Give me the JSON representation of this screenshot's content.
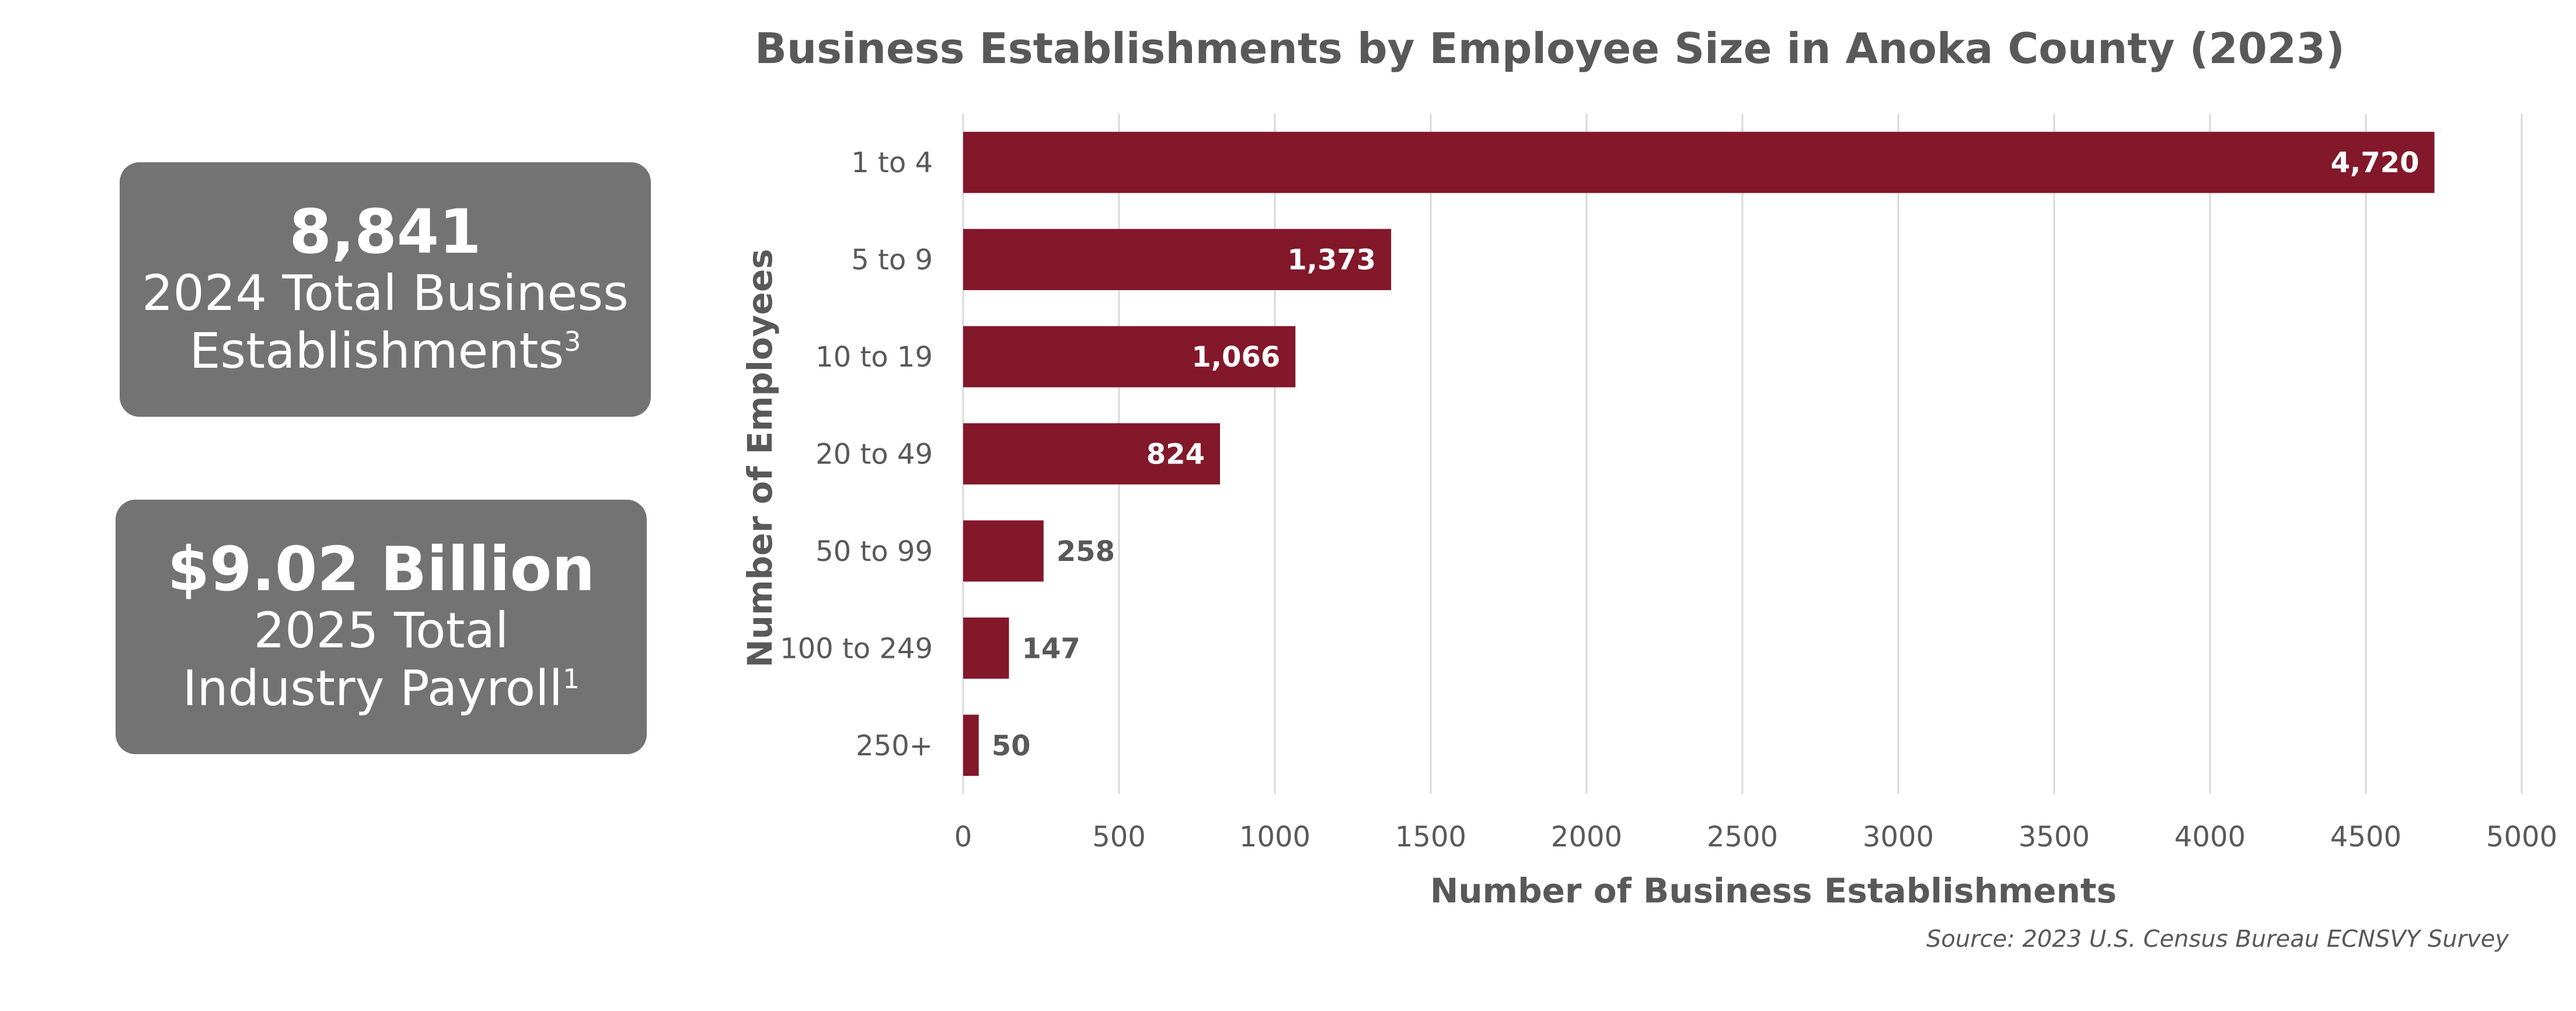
{
  "stat_cards": [
    {
      "value": "8,841",
      "line1": "2024 Total Business",
      "line2": "Establishments",
      "sup": "3"
    },
    {
      "value": "$9.02 Billion",
      "line1": "2025 Total",
      "line2": "Industry Payroll",
      "sup": "1"
    }
  ],
  "source": "Source: 2023 U.S. Census Bureau ECNSVY Survey",
  "chart_data": {
    "type": "bar",
    "orientation": "horizontal",
    "title": "Business Establishments by Employee Size in Anoka County (2023)",
    "xlabel": "Number of Business Establishments",
    "ylabel": "Number of Employees",
    "categories": [
      "1 to 4",
      "5 to 9",
      "10 to 19",
      "20 to 49",
      "50 to 99",
      "100 to 249",
      "250+"
    ],
    "values": [
      4720,
      1373,
      1066,
      824,
      258,
      147,
      50
    ],
    "value_labels": [
      "4,720",
      "1,373",
      "1,066",
      "824",
      "258",
      "147",
      "50"
    ],
    "xlim": [
      0,
      5000
    ],
    "xticks": [
      0,
      500,
      1000,
      1500,
      2000,
      2500,
      3000,
      3500,
      4000,
      4500,
      5000
    ],
    "grid": "vertical",
    "bar_color": "#82182A",
    "grid_color": "#D9D9D9"
  }
}
